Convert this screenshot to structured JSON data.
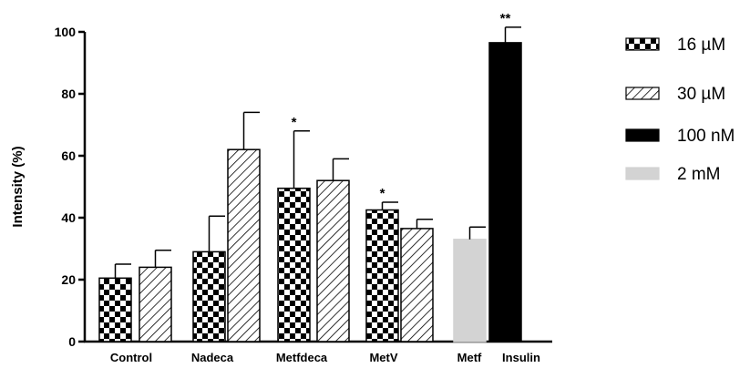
{
  "chart_data": {
    "type": "bar",
    "ylabel": "Intensity (%)",
    "ylim": [
      0,
      100
    ],
    "yticks": [
      0,
      20,
      40,
      60,
      80,
      100
    ],
    "categories": [
      "Control",
      "Nadeca",
      "Metfdeca",
      "MetV",
      "Metf",
      "Insulin"
    ],
    "legend": [
      {
        "label": "16 µM",
        "style": "checker",
        "color": "#000000"
      },
      {
        "label": "30 µM",
        "style": "hatch",
        "color": "#000000"
      },
      {
        "label": "100 nM",
        "style": "solid",
        "color": "#000000"
      },
      {
        "label": "2 mM",
        "style": "solid",
        "color": "#d3d3d3"
      }
    ],
    "legend_position": "right",
    "grid": false,
    "bars": [
      {
        "category": "Control",
        "series": "16 µM",
        "value": 20.5,
        "error": 4.5,
        "sig": ""
      },
      {
        "category": "Control",
        "series": "30 µM",
        "value": 24.0,
        "error": 5.5,
        "sig": ""
      },
      {
        "category": "Nadeca",
        "series": "16 µM",
        "value": 29.0,
        "error": 11.5,
        "sig": ""
      },
      {
        "category": "Nadeca",
        "series": "30 µM",
        "value": 62.0,
        "error": 12.0,
        "sig": ""
      },
      {
        "category": "Metfdeca",
        "series": "16 µM",
        "value": 49.5,
        "error": 18.5,
        "sig": "*"
      },
      {
        "category": "Metfdeca",
        "series": "30 µM",
        "value": 52.0,
        "error": 7.0,
        "sig": ""
      },
      {
        "category": "MetV",
        "series": "16 µM",
        "value": 42.5,
        "error": 2.5,
        "sig": "*"
      },
      {
        "category": "MetV",
        "series": "30 µM",
        "value": 36.5,
        "error": 3.0,
        "sig": ""
      },
      {
        "category": "Metf",
        "series": "2 mM",
        "value": 33.0,
        "error": 4.0,
        "sig": ""
      },
      {
        "category": "Insulin",
        "series": "100 nM",
        "value": 96.5,
        "error": 5.0,
        "sig": "**"
      }
    ]
  }
}
